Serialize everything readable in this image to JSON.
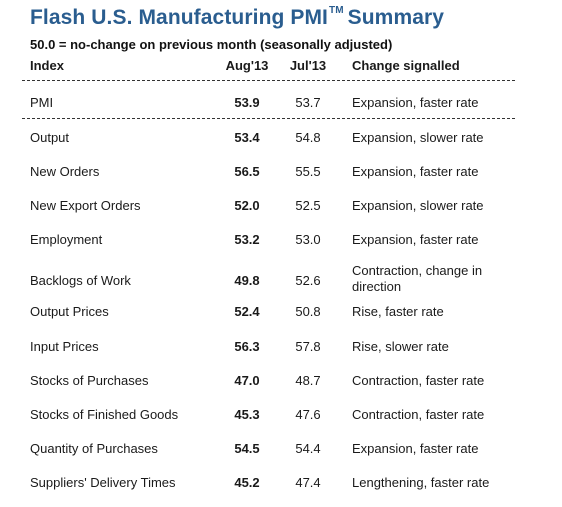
{
  "title": {
    "main": "Flash U.S. Manufacturing PMI",
    "tm": "TM",
    "suffix": "Summary"
  },
  "subtitle": "50.0 = no-change on previous month (seasonally adjusted)",
  "columns": {
    "index": "Index",
    "aug": "Aug'13",
    "jul": "Jul'13",
    "change": "Change signalled"
  },
  "rows": [
    {
      "index": "PMI",
      "aug": "53.9",
      "jul": "53.7",
      "change": "Expansion, faster rate"
    },
    {
      "index": "Output",
      "aug": "53.4",
      "jul": "54.8",
      "change": "Expansion, slower rate"
    },
    {
      "index": "New Orders",
      "aug": "56.5",
      "jul": "55.5",
      "change": "Expansion, faster rate"
    },
    {
      "index": "New Export Orders",
      "aug": "52.0",
      "jul": "52.5",
      "change": "Expansion, slower rate"
    },
    {
      "index": "Employment",
      "aug": "53.2",
      "jul": "53.0",
      "change": "Expansion, faster rate"
    },
    {
      "index": "Backlogs of Work",
      "aug": "49.8",
      "jul": "52.6",
      "change": "Contraction, change in direction"
    },
    {
      "index": "Output Prices",
      "aug": "52.4",
      "jul": "50.8",
      "change": "Rise, faster rate"
    },
    {
      "index": "Input Prices",
      "aug": "56.3",
      "jul": "57.8",
      "change": "Rise, slower rate"
    },
    {
      "index": "Stocks of Purchases",
      "aug": "47.0",
      "jul": "48.7",
      "change": "Contraction, faster rate"
    },
    {
      "index": "Stocks of Finished Goods",
      "aug": "45.3",
      "jul": "47.6",
      "change": "Contraction, faster rate"
    },
    {
      "index": "Quantity of Purchases",
      "aug": "54.5",
      "jul": "54.4",
      "change": "Expansion, faster rate"
    },
    {
      "index": "Suppliers' Delivery Times",
      "aug": "45.2",
      "jul": "47.4",
      "change": "Lengthening, faster rate"
    }
  ]
}
